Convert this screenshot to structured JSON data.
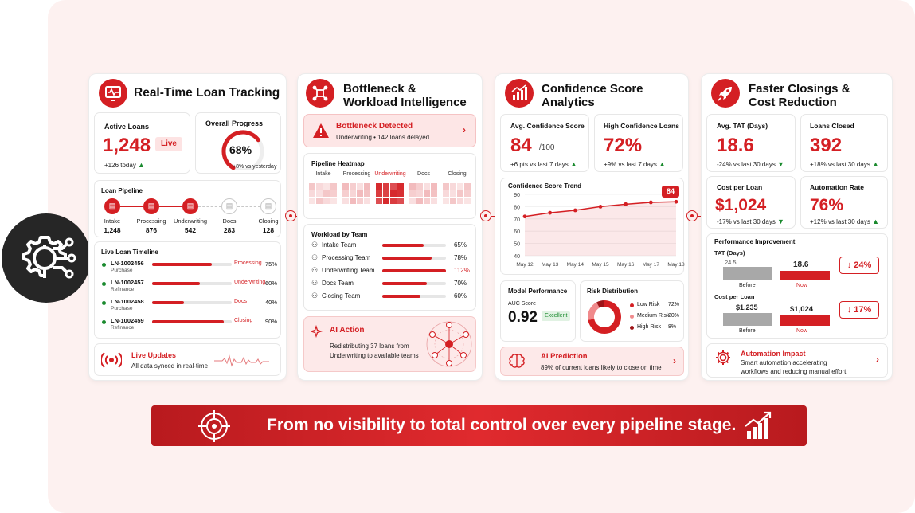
{
  "panels": {
    "tracking": {
      "title_1": "Real-Time Loan Tracking",
      "active_loans_label": "Active Loans",
      "active_loans_value": "1,248",
      "live_badge": "Live",
      "active_loans_delta": "+126 today",
      "overall_progress_label": "Overall Progress",
      "overall_progress_value": "68%",
      "overall_progress_fraction": 0.68,
      "overall_progress_delta": "+8% vs yesterday",
      "pipeline_label": "Loan Pipeline",
      "pipeline_stages": [
        {
          "name": "Intake",
          "count": "1,248",
          "icon": "clipboard-icon",
          "active": true
        },
        {
          "name": "Processing",
          "count": "876",
          "icon": "image-doc-icon",
          "active": true
        },
        {
          "name": "Underwriting",
          "count": "542",
          "icon": "document-icon",
          "active": true
        },
        {
          "name": "Docs",
          "count": "283",
          "icon": "file-icon",
          "active": false
        },
        {
          "name": "Closing",
          "count": "128",
          "icon": "check-doc-icon",
          "active": false
        }
      ],
      "timeline_label": "Live Loan Timeline",
      "timeline": [
        {
          "id": "LN-1002456",
          "type": "Purchase",
          "stage": "Processing",
          "pct": "75%",
          "value": 0.75
        },
        {
          "id": "LN-1002457",
          "type": "Refinance",
          "stage": "Underwriting",
          "pct": "60%",
          "value": 0.6
        },
        {
          "id": "LN-1002458",
          "type": "Purchase",
          "stage": "Docs",
          "pct": "40%",
          "value": 0.4
        },
        {
          "id": "LN-1002459",
          "type": "Refinance",
          "stage": "Closing",
          "pct": "90%",
          "value": 0.9
        }
      ],
      "live_updates_title": "Live Updates",
      "live_updates_text": "All data synced in real-time"
    },
    "bottleneck": {
      "title_1": "Bottleneck &",
      "title_2": "Workload Intelligence",
      "alert_title": "Bottleneck Detected",
      "alert_text": "Underwriting • 142 loans delayed",
      "heatmap_label": "Pipeline Heatmap",
      "heatmap_columns": [
        "Intake",
        "Processing",
        "Underwriting",
        "Docs",
        "Closing"
      ],
      "heatmap_intensity": [
        0.25,
        0.3,
        0.95,
        0.3,
        0.25
      ],
      "workload_label": "Workload by Team",
      "teams": [
        {
          "name": "Intake Team",
          "pct": "65%",
          "value": 0.65,
          "alert": false
        },
        {
          "name": "Processing Team",
          "pct": "78%",
          "value": 0.78,
          "alert": false
        },
        {
          "name": "Underwriting Team",
          "pct": "112%",
          "value": 1.0,
          "alert": true
        },
        {
          "name": "Docs Team",
          "pct": "70%",
          "value": 0.7,
          "alert": false
        },
        {
          "name": "Closing Team",
          "pct": "60%",
          "value": 0.6,
          "alert": false
        }
      ],
      "ai_action_title": "AI Action",
      "ai_action_text_1": "Redistributing 37 loans from",
      "ai_action_text_2": "Underwriting to available teams"
    },
    "confidence": {
      "title_1": "Confidence Score",
      "title_2": "Analytics",
      "avg_label": "Avg. Confidence Score",
      "avg_value": "84",
      "avg_suffix": "/100",
      "avg_delta": "+6 pts vs last 7 days",
      "high_label": "High Confidence Loans",
      "high_value": "72%",
      "high_delta": "+9% vs last 7 days",
      "trend_label": "Confidence Score Trend",
      "trend_badge": "84",
      "model_label": "Model Performance",
      "auc_label": "AUC Score",
      "auc_value": "0.92",
      "auc_badge": "Excellent",
      "risk_label": "Risk Distribution",
      "risk": [
        {
          "name": "Low Risk",
          "pct": "72%",
          "value": 72,
          "color": "#d41f23"
        },
        {
          "name": "Medium Risk",
          "pct": "20%",
          "value": 20,
          "color": "#f08a8c"
        },
        {
          "name": "High Risk",
          "pct": "8%",
          "value": 8,
          "color": "#9e1418"
        }
      ],
      "prediction_title": "AI Prediction",
      "prediction_text": "89% of current loans likely to close on time"
    },
    "closings": {
      "title_1": "Faster Closings &",
      "title_2": "Cost Reduction",
      "tat_label": "Avg. TAT (Days)",
      "tat_value": "18.6",
      "tat_delta": "-24% vs last 30 days",
      "closed_label": "Loans Closed",
      "closed_value": "392",
      "closed_delta": "+18% vs last 30 days",
      "cost_label": "Cost per Loan",
      "cost_value": "$1,024",
      "cost_delta": "-17% vs last 30 days",
      "automation_label": "Automation Rate",
      "automation_value": "76%",
      "automation_delta": "+12% vs last 30 days",
      "perf_label": "Performance Improvement",
      "perf_tat_label": "TAT (Days)",
      "perf_tat_before": "24.5",
      "perf_tat_now": "18.6",
      "perf_tat_change": "↓ 24%",
      "perf_cost_label": "Cost per Loan",
      "perf_cost_before": "$1,235",
      "perf_cost_now": "$1,024",
      "perf_cost_change": "↓ 17%",
      "before_label": "Before",
      "now_label": "Now",
      "auto_title": "Automation Impact",
      "auto_text_1": "Smart automation accelerating",
      "auto_text_2": "workflows and reducing manual effort"
    }
  },
  "banner_text": "From no visibility to total control over every pipeline stage.",
  "chart_data": {
    "type": "line",
    "title": "Confidence Score Trend",
    "x": [
      "May 12",
      "May 13",
      "May 14",
      "May 15",
      "May 16",
      "May 17",
      "May 18"
    ],
    "series": [
      {
        "values": [
          72,
          75,
          77,
          80,
          82,
          83.5,
          84
        ]
      }
    ],
    "ylim": [
      40,
      90
    ],
    "yticks": [
      40,
      50,
      60,
      70,
      80,
      90
    ],
    "grid": true,
    "accent": "#d41f23"
  },
  "colors": {
    "accent": "#d41f23",
    "positive": "#1a8a2e",
    "background": "#fdf1f0"
  }
}
